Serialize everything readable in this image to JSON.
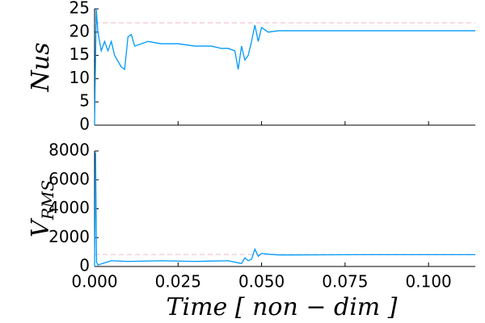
{
  "chart_data": [
    {
      "type": "line",
      "y_label": "Nus",
      "x": [
        0,
        0.0005,
        0.001,
        0.002,
        0.003,
        0.004,
        0.005,
        0.006,
        0.008,
        0.009,
        0.01,
        0.011,
        0.012,
        0.014,
        0.016,
        0.02,
        0.025,
        0.03,
        0.035,
        0.038,
        0.04,
        0.042,
        0.043,
        0.044,
        0.045,
        0.046,
        0.047,
        0.048,
        0.049,
        0.05,
        0.052,
        0.055,
        0.06,
        0.07,
        0.08,
        0.09,
        0.1,
        0.114
      ],
      "series": [
        {
          "color": "#009af9",
          "values": [
            0,
            25,
            20,
            16,
            18,
            16,
            18,
            15,
            12.5,
            12,
            19,
            19.5,
            17,
            17.5,
            18,
            17.5,
            17.5,
            17,
            17,
            16.5,
            16.5,
            16,
            12,
            17,
            14,
            15,
            18,
            21.5,
            18,
            21,
            20,
            20.3,
            20.3,
            20.3,
            20.3,
            20.3,
            20.3,
            20.3
          ]
        }
      ],
      "reference_line": {
        "value": 22,
        "color": "#f4b6c2"
      },
      "xlim": [
        0,
        0.114
      ],
      "ylim": [
        0,
        25
      ],
      "yticks": [
        0,
        5,
        10,
        15,
        20,
        25
      ]
    },
    {
      "type": "line",
      "y_label": "V",
      "y_label_subscript": "RMS",
      "x_label": "Time [ non − dim ]",
      "x": [
        0,
        0.0003,
        0.0006,
        0.001,
        0.003,
        0.005,
        0.01,
        0.02,
        0.03,
        0.04,
        0.044,
        0.045,
        0.046,
        0.047,
        0.048,
        0.049,
        0.05,
        0.052,
        0.055,
        0.06,
        0.08,
        0.1,
        0.114
      ],
      "series": [
        {
          "color": "#009af9",
          "values": [
            0,
            7900,
            300,
            100,
            250,
            400,
            350,
            400,
            350,
            400,
            200,
            600,
            400,
            500,
            1200,
            700,
            900,
            850,
            800,
            800,
            820,
            820,
            820
          ]
        }
      ],
      "reference_line": {
        "value": 830,
        "color": "#f4b6c2"
      },
      "xlim": [
        0,
        0.114
      ],
      "ylim": [
        0,
        8000
      ],
      "yticks": [
        0,
        2000,
        4000,
        6000,
        8000
      ],
      "xticks": [
        {
          "value": 0,
          "label": "0.000"
        },
        {
          "value": 0.025,
          "label": "0.025"
        },
        {
          "value": 0.05,
          "label": "0.050"
        },
        {
          "value": 0.075,
          "label": "0.075"
        },
        {
          "value": 0.1,
          "label": "0.100"
        }
      ]
    }
  ]
}
